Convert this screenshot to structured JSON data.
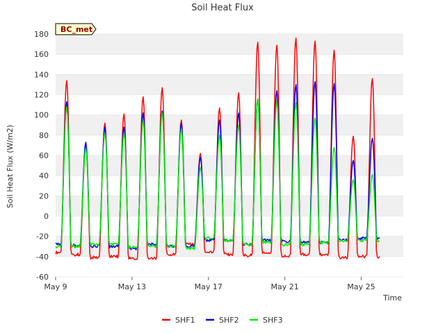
{
  "chart_data": {
    "type": "line",
    "title": "Soil Heat Flux",
    "xlabel": "Time",
    "ylabel": "Soil Heat Flux (W/m2)",
    "ylim": [
      -60,
      180
    ],
    "yticks": [
      -60,
      -40,
      -20,
      0,
      20,
      40,
      60,
      80,
      100,
      120,
      140,
      160,
      180
    ],
    "xlim": [
      9,
      27.2
    ],
    "xticks": [
      {
        "day": 9,
        "label": "May 9"
      },
      {
        "day": 13,
        "label": "May 13"
      },
      {
        "day": 17,
        "label": "May 17"
      },
      {
        "day": 21,
        "label": "May 21"
      },
      {
        "day": 25,
        "label": "May 25"
      }
    ],
    "badge": "BC_met",
    "grid": "horizontal bands",
    "legend_position": "bottom-center",
    "day_start": 9,
    "series": [
      {
        "name": "SHF1",
        "color": "#ff0000",
        "night": [
          -36,
          -38,
          -41,
          -40,
          -42,
          -42,
          -38,
          -28,
          -35,
          -38,
          -39,
          -37,
          -40,
          -38,
          -38,
          -41,
          -40
        ],
        "peak": [
          134,
          70,
          92,
          101,
          118,
          127,
          95,
          62,
          107,
          122,
          172,
          169,
          176,
          173,
          164,
          79,
          136
        ]
      },
      {
        "name": "SHF2",
        "color": "#0000ff",
        "night": [
          -28,
          -29,
          -30,
          -30,
          -32,
          -28,
          -30,
          -30,
          -24,
          -24,
          -28,
          -24,
          -25,
          -26,
          -26,
          -24,
          -22
        ],
        "peak": [
          113,
          73,
          88,
          88,
          102,
          104,
          92,
          58,
          95,
          102,
          116,
          124,
          130,
          133,
          131,
          55,
          77
        ]
      },
      {
        "name": "SHF3",
        "color": "#00ee00",
        "night": [
          -30,
          -30,
          -28,
          -28,
          -31,
          -30,
          -30,
          -32,
          -22,
          -24,
          -28,
          -26,
          -28,
          -28,
          -26,
          -24,
          -24
        ],
        "peak": [
          108,
          67,
          82,
          82,
          95,
          102,
          86,
          48,
          80,
          90,
          116,
          114,
          112,
          97,
          68,
          36,
          41
        ]
      }
    ]
  }
}
